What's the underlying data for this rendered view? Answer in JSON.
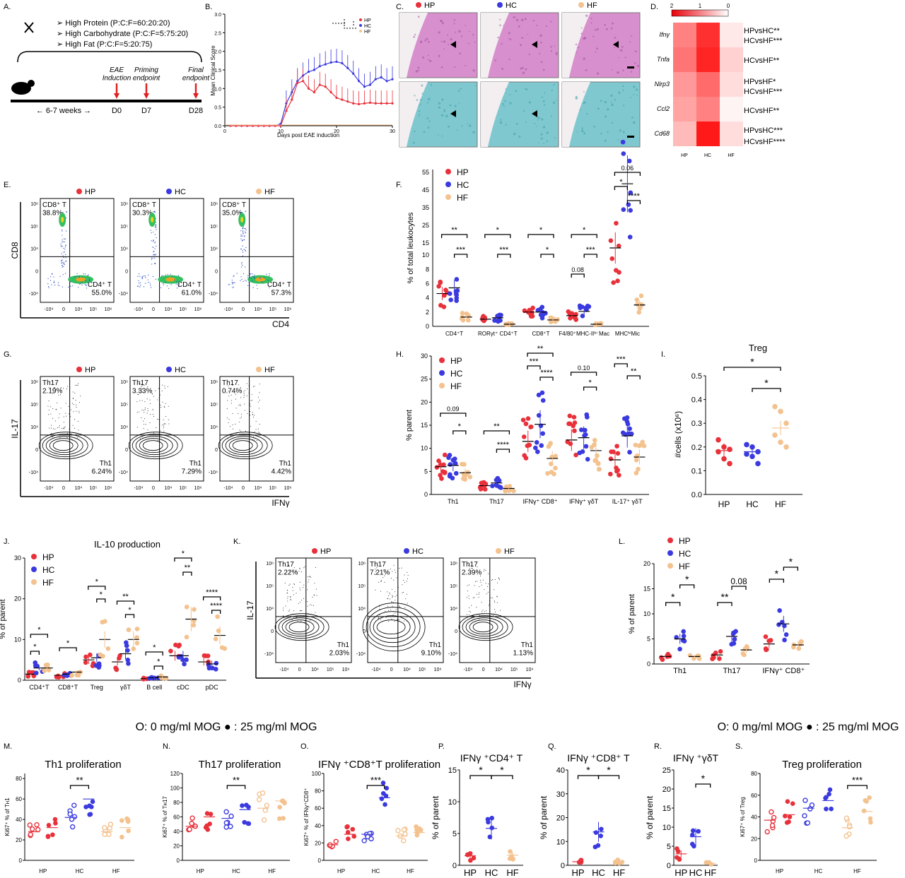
{
  "colors": {
    "HP": "#e8313a",
    "HC": "#3a3adf",
    "HF": "#f3c28f",
    "axis": "#000000",
    "grid": "#888888",
    "he_tissue": "#d88fce",
    "lfb_tissue": "#7fc8cf"
  },
  "panel_labels": [
    "A.",
    "B.",
    "C.",
    "D.",
    "E.",
    "F.",
    "G.",
    "H.",
    "I.",
    "J.",
    "K.",
    "L.",
    "M.",
    "N.",
    "O.",
    "P.",
    "Q.",
    "R.",
    "S."
  ],
  "groups": {
    "HP": "HP",
    "HC": "HC",
    "HF": "HF"
  },
  "panelA": {
    "diets": [
      "High Protein (P:C:F=60:20:20)",
      "High Carbohydrate (P:C:F=5:75:20)",
      "High Fat (P:C:F=5:20:75)"
    ],
    "events": [
      {
        "label": "EAE\nInduction",
        "day": "D0"
      },
      {
        "label": "Priming\nendpoint",
        "day": "D7"
      },
      {
        "label": "Final\nendpoint",
        "day": "D28"
      }
    ],
    "weeks": "6-7 weeks"
  },
  "panelB": {
    "ylabel": "Mean Clinical Score",
    "xlabel": "Days post EAE induction",
    "xticks": [
      "0",
      "10",
      "20",
      "30"
    ],
    "yticks": [
      "0.0",
      "0.5",
      "1.0",
      "1.5",
      "2.0",
      "2.5",
      "3.0"
    ],
    "legend": [
      "HP",
      "HC",
      "HF"
    ]
  },
  "panelD": {
    "scale_ticks": [
      "2",
      "1",
      "0"
    ],
    "genes": [
      "Ifnγ",
      "Tnfa",
      "Nlrp3",
      "Ccl2",
      "Cd68"
    ],
    "columns": [
      "HP",
      "HC",
      "HF"
    ],
    "stats": [
      "HPvsHC**",
      "HCvsHF***",
      "HCvsHF**",
      "HPvsHF*",
      "HCvsHF***",
      "HCvsHF**",
      "HPvsHC***",
      "HCvsHF****"
    ]
  },
  "flowE": {
    "xlabel": "CD4",
    "ylabel": "CD8",
    "plots": [
      {
        "group": "HP",
        "top": "CD8⁺ T\n38.8%",
        "bottom": "CD4⁺ T\n55.0%"
      },
      {
        "group": "HC",
        "top": "CD8⁺ T\n30.3%",
        "bottom": "CD4⁺ T\n61.0%"
      },
      {
        "group": "HF",
        "top": "CD8⁺ T\n35.0%",
        "bottom": "CD4⁺ T\n57.3%"
      }
    ]
  },
  "flowG": {
    "xlabel": "IFNγ",
    "ylabel": "IL-17",
    "plots": [
      {
        "group": "HP",
        "top": "Th17\n2.19%",
        "bottom": "Th1\n6.24%"
      },
      {
        "group": "HC",
        "top": "Th17\n3.33%",
        "bottom": "Th1\n7.29%"
      },
      {
        "group": "HF",
        "top": "Th17\n0.74%",
        "bottom": "Th1\n4.42%"
      }
    ]
  },
  "flowK": {
    "xlabel": "IFNγ",
    "ylabel": "IL-17",
    "plots": [
      {
        "group": "HP",
        "top": "Th17\n2.22%",
        "bottom": "Th1\n2.03%"
      },
      {
        "group": "HC",
        "top": "Th17\n7.21%",
        "bottom": "Th1\n9.10%"
      },
      {
        "group": "HF",
        "top": "Th17\n2.39%",
        "bottom": "Th1\n1.13%"
      }
    ]
  },
  "panelF": {
    "ylabel": "% of total leukocytes",
    "yticks_low": [
      "0",
      "2",
      "4",
      "6",
      "8",
      "10"
    ],
    "yticks_high": [
      "15",
      "25",
      "35",
      "45",
      "55"
    ],
    "categories": [
      "CD4⁺T",
      "RORγt⁺\nCD4⁺T",
      "CD8⁺T",
      "F4/80⁺MHC-IIʰⁱ\nMac",
      "MHCʰⁱMic"
    ],
    "means": {
      "HP": [
        4.6,
        1.0,
        2.0,
        1.5,
        11.0
      ],
      "HC": [
        5.4,
        1.2,
        2.0,
        2.1,
        20.0
      ],
      "HF": [
        1.3,
        0.3,
        0.9,
        0.3,
        3.0
      ]
    },
    "stats": [
      "**",
      "***",
      "*",
      "***",
      "*",
      "*",
      "*",
      "***",
      "0.08",
      "0.06",
      "*",
      "****"
    ]
  },
  "panelH": {
    "ylabel": "% parent",
    "yticks": [
      "0",
      "5",
      "10",
      "15",
      "20",
      "25",
      "30"
    ],
    "categories": [
      "Th1",
      "Th17",
      "IFNγ⁺\nCD8⁺",
      "IFNγ⁺\nγδT",
      "IL-17⁺\nγδT"
    ],
    "means": {
      "HP": [
        6.0,
        1.9,
        11.5,
        11.8,
        7.5
      ],
      "HC": [
        6.3,
        2.5,
        15.2,
        12.3,
        12.7
      ],
      "HF": [
        4.7,
        1.3,
        7.8,
        9.5,
        8.1
      ]
    },
    "stats": [
      "0.09",
      "*",
      "**",
      "****",
      "**",
      "***",
      "****",
      "0.10",
      "*",
      "***",
      "**"
    ]
  },
  "panelI": {
    "title": "Treg",
    "ylabel": "#cells (x10⁶)",
    "yticks": [
      "0.0",
      "0.1",
      "0.2",
      "0.3",
      "0.4",
      "0.5"
    ],
    "categories": [
      "HP",
      "HC",
      "HF"
    ],
    "means": [
      0.185,
      0.18,
      0.28
    ],
    "points": [
      [
        0.23,
        0.2,
        0.19,
        0.18,
        0.15,
        0.13
      ],
      [
        0.21,
        0.2,
        0.18,
        0.17,
        0.16,
        0.13
      ],
      [
        0.37,
        0.35,
        0.3,
        0.25,
        0.22,
        0.2
      ]
    ],
    "stats": [
      "*",
      "*"
    ]
  },
  "panelJ": {
    "title": "IL-10 production",
    "ylabel": "% of parent",
    "yticks": [
      "0",
      "10",
      "20",
      "30"
    ],
    "categories": [
      "CD4⁺T",
      "CD8⁺T",
      "Treg",
      "γδT",
      "B cell",
      "cDC",
      "pDC"
    ],
    "means": {
      "HP": [
        1.5,
        1.2,
        5.0,
        4.5,
        0.4,
        6.0,
        4.5
      ],
      "HC": [
        3.0,
        1.5,
        5.5,
        6.5,
        0.6,
        6.0,
        4.0
      ],
      "HF": [
        3.0,
        2.0,
        10.0,
        10.0,
        0.8,
        15.0,
        11.0
      ]
    },
    "stats": [
      "*",
      "*",
      "*",
      "*",
      "*",
      "**",
      "*",
      "*",
      "*",
      "*",
      "**",
      "****",
      "****"
    ]
  },
  "panelL": {
    "ylabel": "% of parent",
    "yticks": [
      "0",
      "5",
      "10",
      "15",
      "20"
    ],
    "categories": [
      "Th1",
      "Th17",
      "IFNγ⁺\nCD8⁺"
    ],
    "means": {
      "HP": [
        1.5,
        1.8,
        4.0
      ],
      "HC": [
        5.0,
        5.5,
        8.0
      ],
      "HF": [
        1.5,
        2.8,
        3.8
      ]
    },
    "stats": [
      "*",
      "*",
      "**",
      "0.08",
      "*",
      "*"
    ]
  },
  "mog_legend": "O: 0 mg/ml MOG ● : 25 mg/ml MOG",
  "prolif": [
    {
      "label": "M.",
      "title": "Th1 proliferation",
      "ylabel": "Ki67⁺ % of Tʜ1",
      "yticks": [
        "0",
        "20",
        "40",
        "60",
        "80"
      ],
      "ymax": 85,
      "means": [
        28,
        32,
        42,
        60,
        28,
        32
      ],
      "stat": "**",
      "statpair": [
        2,
        3
      ]
    },
    {
      "label": "N.",
      "title": "Th17 proliferation",
      "ylabel": "Ki67⁺ % of Tʜ17",
      "yticks": [
        "0",
        "20",
        "40",
        "60",
        "80",
        "100",
        "120"
      ],
      "ymax": 120,
      "means": [
        47,
        60,
        58,
        70,
        72,
        82
      ],
      "stat": "**",
      "statpair": [
        2,
        3
      ]
    },
    {
      "label": "O.",
      "title": "IFNγ ⁺CD8⁺T proliferation",
      "ylabel": "Ki67⁺ % of IFNγ⁺CD8⁺",
      "yticks": [
        "0",
        "20",
        "40",
        "60",
        "80",
        "100"
      ],
      "ymax": 100,
      "means": [
        18,
        30,
        30,
        72,
        28,
        32
      ],
      "stat": "***",
      "statpair": [
        2,
        3
      ]
    },
    {
      "label": "S.",
      "title": "Treg proliferation",
      "ylabel": "Ki67⁺ % of Treg",
      "yticks": [
        "0",
        "20",
        "40",
        "60",
        "80"
      ],
      "ymax": 80,
      "means": [
        37,
        42,
        48,
        55,
        30,
        45
      ],
      "stat": "***",
      "statpair": [
        4,
        5
      ]
    }
  ],
  "small": [
    {
      "label": "P.",
      "title": "IFNγ ⁺CD4⁺ T",
      "ylabel": "% of parent",
      "yticks": [
        "0",
        "5",
        "10",
        "15"
      ],
      "ymax": 15,
      "means": [
        1.5,
        5.8,
        1.6
      ],
      "stats": [
        "*",
        "*"
      ]
    },
    {
      "label": "Q.",
      "title": "IFNγ ⁺CD8⁺ T",
      "ylabel": "% of parent",
      "yticks": [
        "0",
        "10",
        "20",
        "30",
        "40"
      ],
      "ymax": 40,
      "means": [
        1.5,
        14.0,
        1.7
      ],
      "stats": [
        "*",
        "*"
      ]
    },
    {
      "label": "R.",
      "title": "IFNγ ⁺γδT",
      "ylabel": "% of parent",
      "yticks": [
        "0",
        "5",
        "10",
        "15",
        "20",
        "25"
      ],
      "ymax": 25,
      "means": [
        3.0,
        7.5,
        0.5
      ],
      "stats": [
        "*"
      ]
    }
  ],
  "prolif_xlabels": [
    "HP",
    "HC",
    "HF"
  ]
}
